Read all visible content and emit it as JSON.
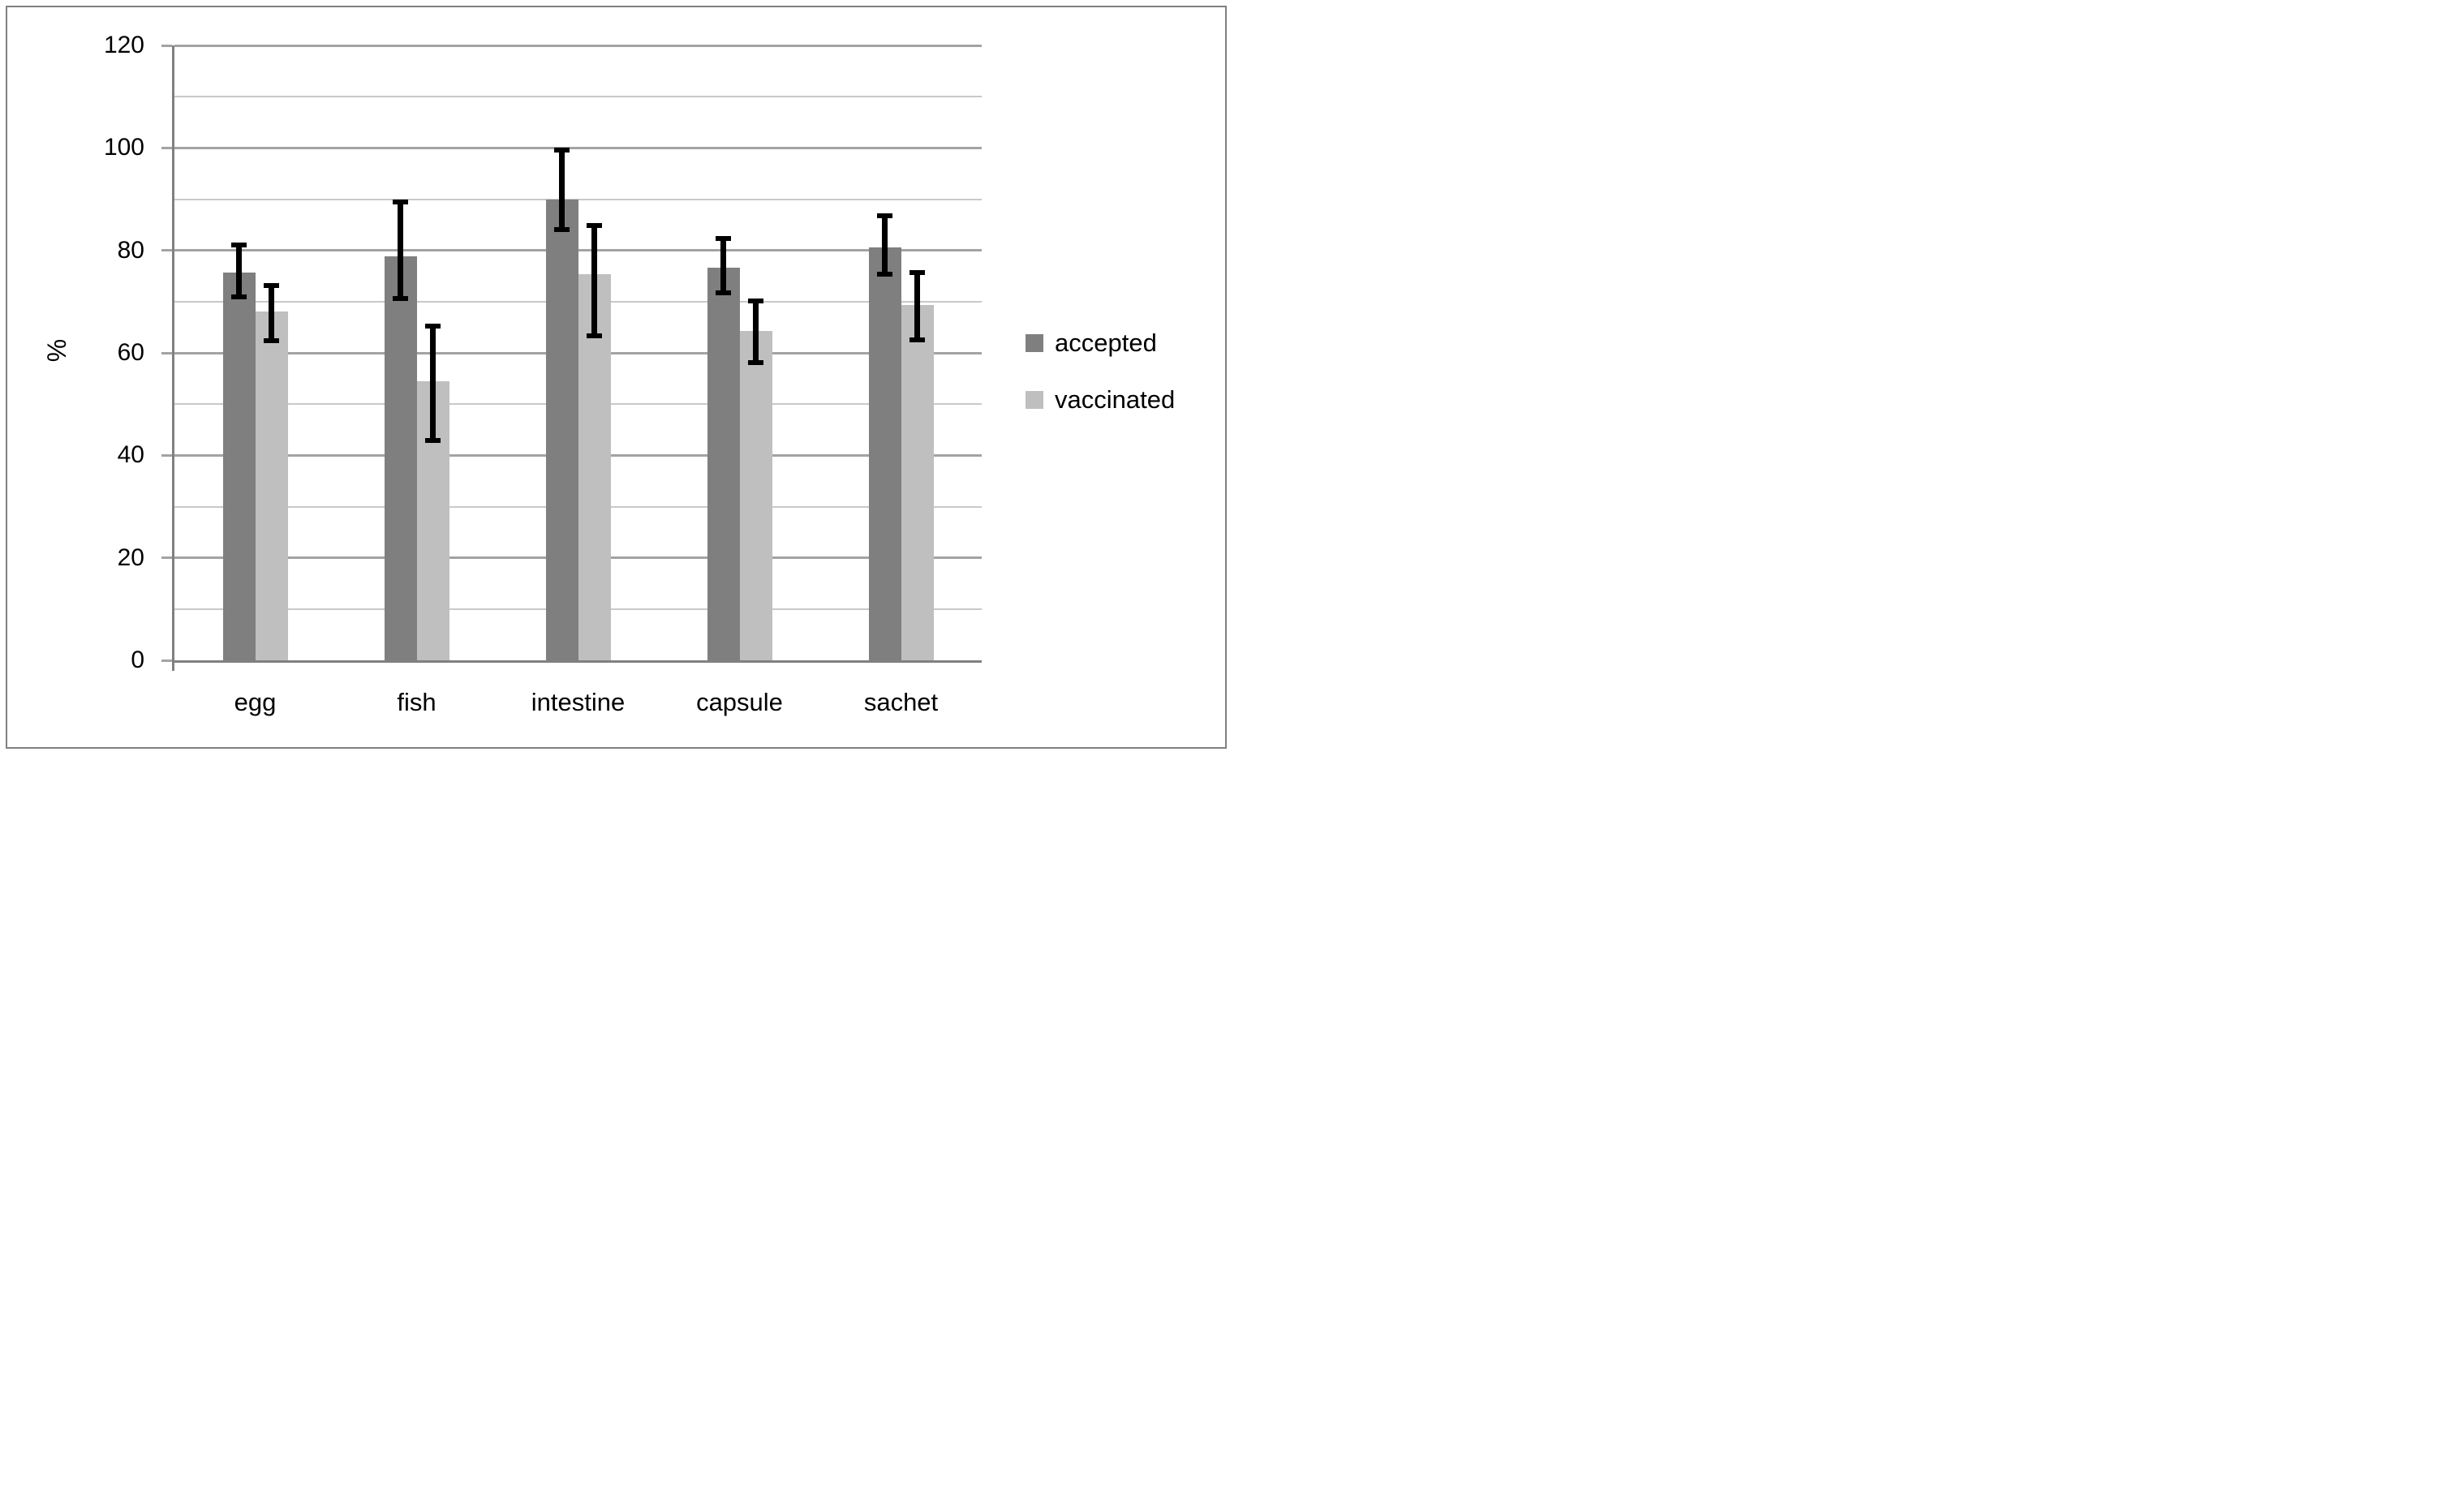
{
  "figure": {
    "background": "#ffffff",
    "border_color": "#808080"
  },
  "chart_data": {
    "type": "bar",
    "title": "",
    "ylabel": "%",
    "xlabel": "",
    "ylim": [
      0,
      120
    ],
    "yticks": [
      0,
      20,
      40,
      60,
      80,
      100,
      120
    ],
    "minor_grid_step": 10,
    "grid": true,
    "legend_position": "right",
    "categories": [
      "egg",
      "fish",
      "intestine",
      "capsule",
      "sachet"
    ],
    "series": [
      {
        "name": "accepted",
        "color": "#7f7f7f",
        "values": [
          75.6,
          78.9,
          89.9,
          76.6,
          80.6
        ],
        "error_high": [
          81.0,
          89.5,
          99.6,
          82.4,
          86.8
        ],
        "error_low": [
          71.0,
          70.6,
          84.0,
          71.7,
          75.3
        ]
      },
      {
        "name": "vaccinated",
        "color": "#bfbfbf",
        "values": [
          68.0,
          54.4,
          75.3,
          64.2,
          69.4
        ],
        "error_high": [
          73.1,
          65.3,
          84.8,
          70.2,
          75.7
        ],
        "error_low": [
          62.3,
          42.9,
          63.4,
          58.1,
          62.6
        ]
      }
    ],
    "style": {
      "gridline_major": "#a3a3a3",
      "gridline_minor": "#c9c9c9",
      "axis": "#808080",
      "error_bar": "#000000",
      "text": "#000000"
    }
  }
}
